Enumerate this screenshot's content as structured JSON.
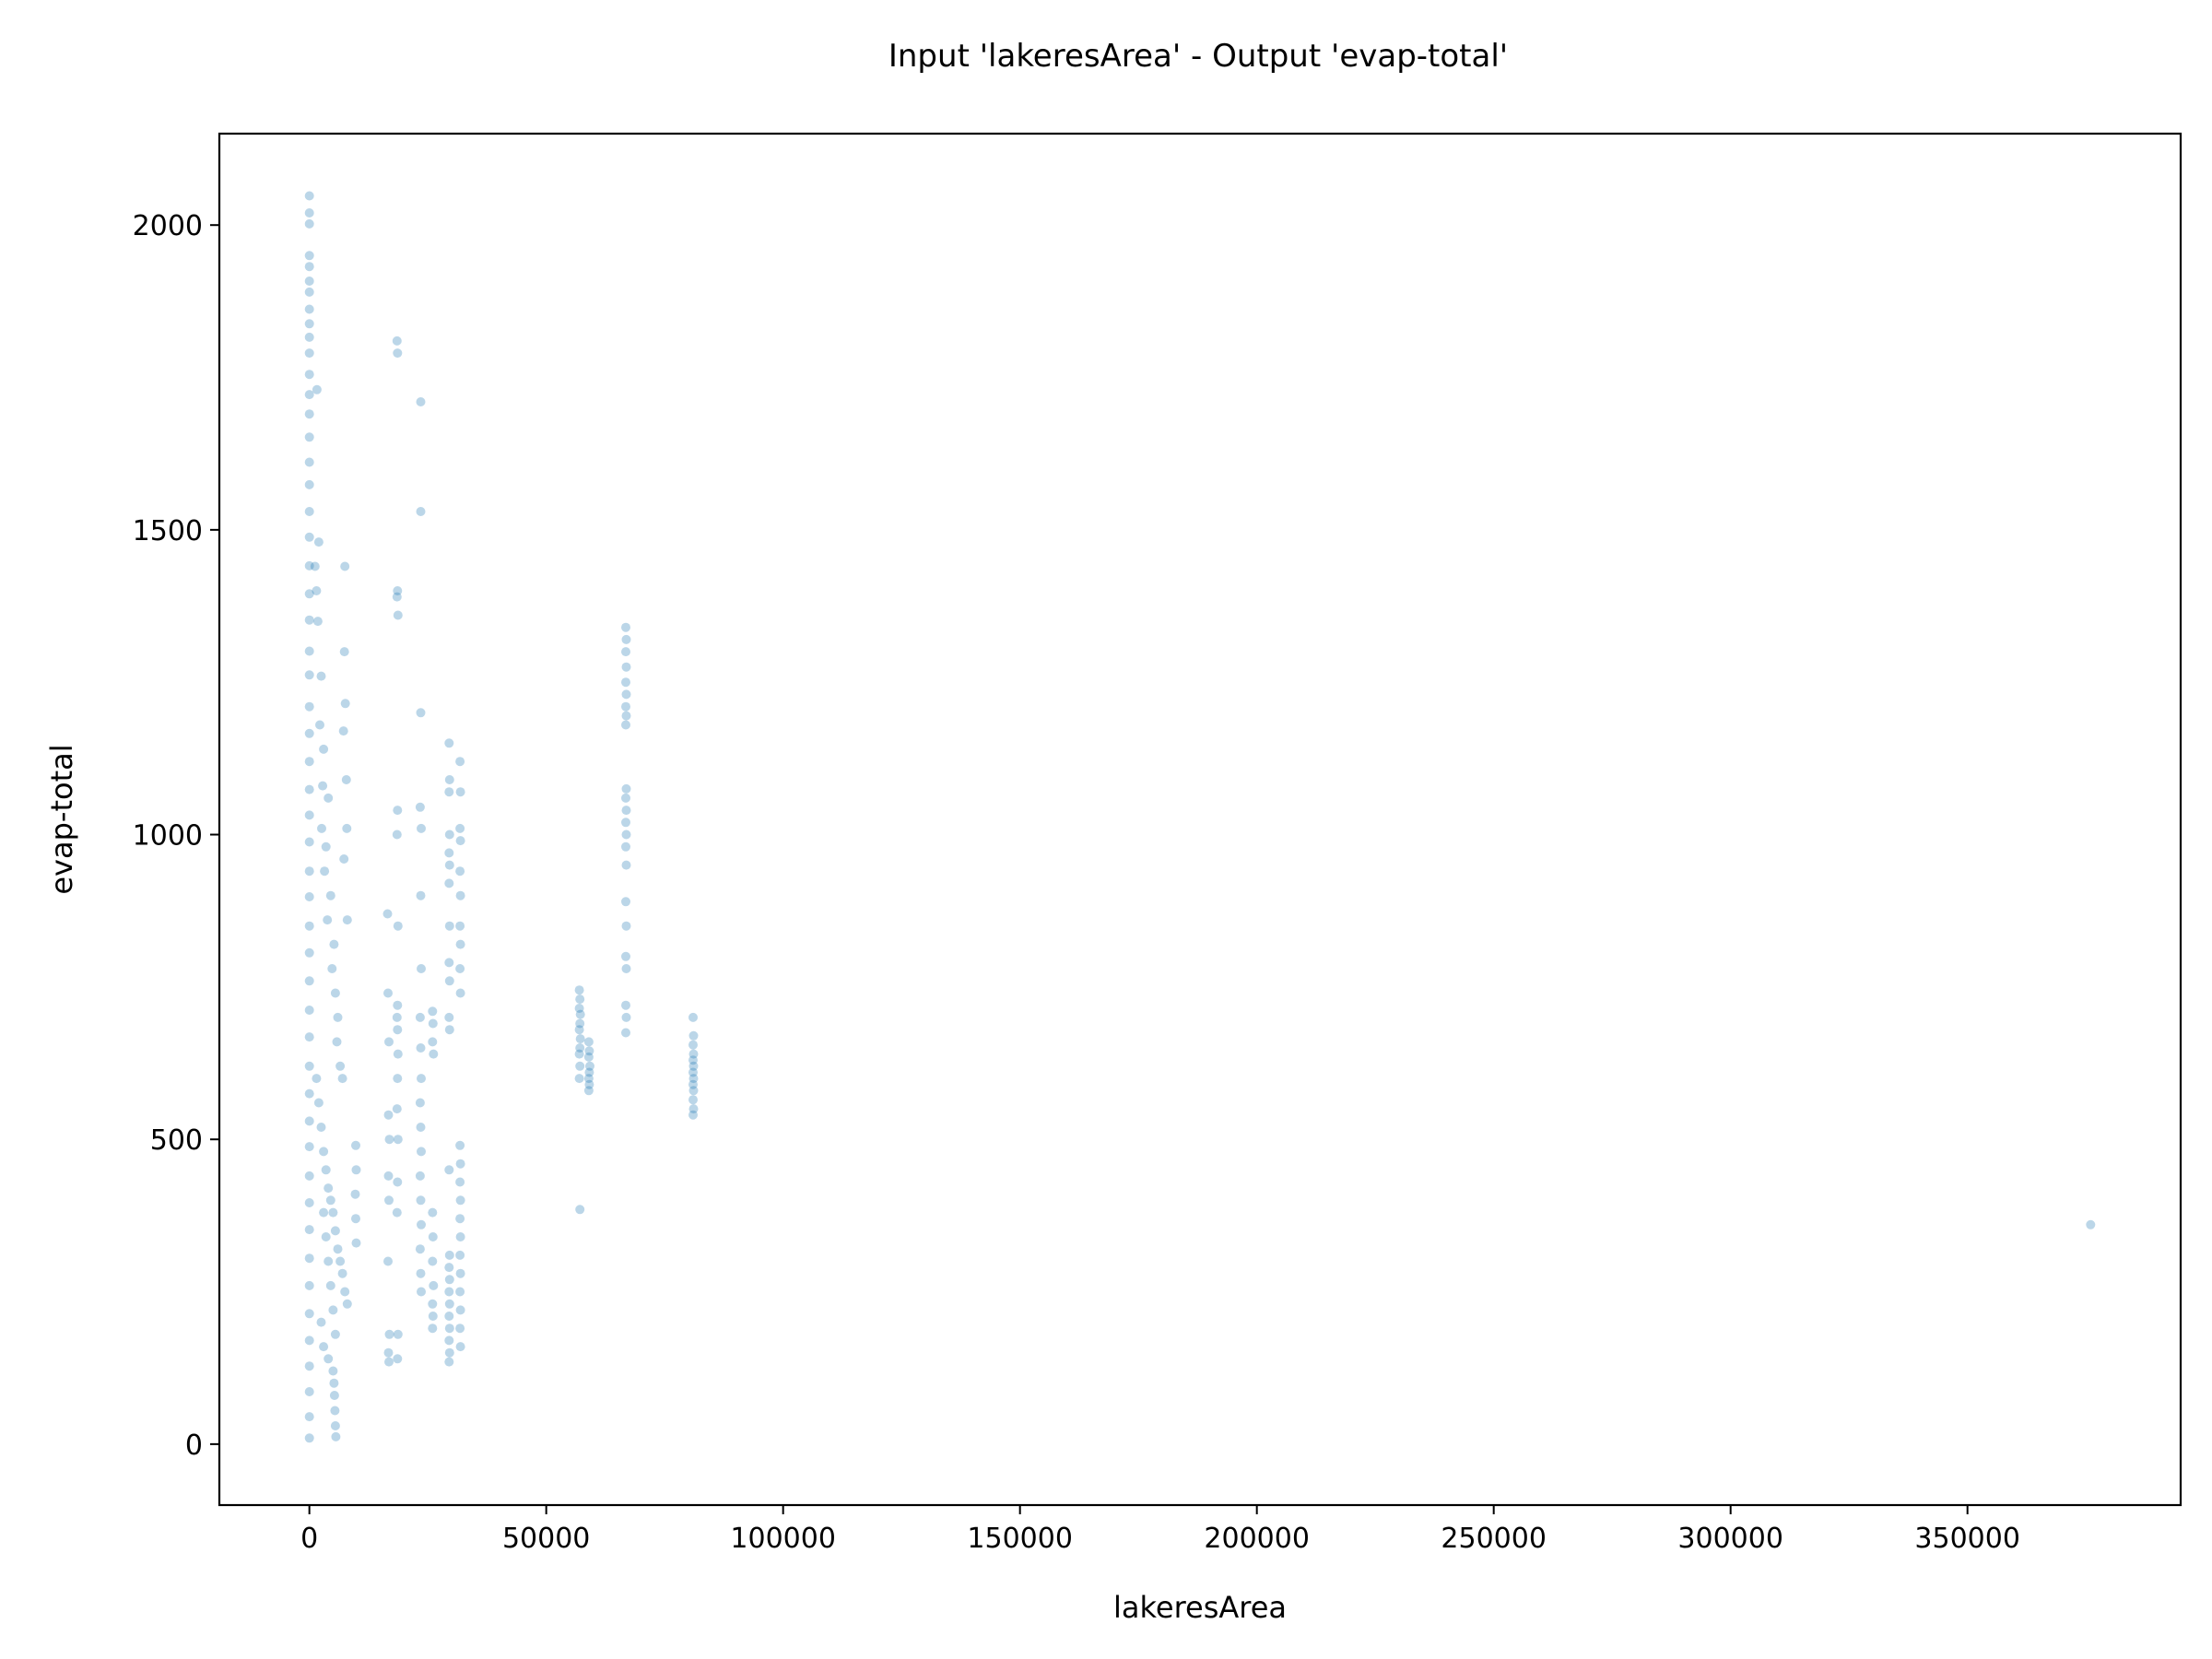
{
  "chart_data": {
    "type": "scatter",
    "title": "Input 'lakeresArea' - Output 'evap-total'",
    "xlabel": "lakeresArea",
    "ylabel": "evap-total",
    "xlim": [
      -19000,
      395000
    ],
    "ylim": [
      -100,
      2150
    ],
    "xticks": [
      0,
      50000,
      100000,
      150000,
      200000,
      250000,
      300000,
      350000
    ],
    "yticks": [
      0,
      500,
      1000,
      1500,
      2000
    ],
    "grid": false,
    "legend": "none",
    "marker_color": "#1f77b4",
    "marker_alpha": 0.3,
    "series": [
      {
        "points": [
          [
            0,
            2048
          ],
          [
            0,
            2020
          ],
          [
            0,
            2002
          ],
          [
            0,
            1950
          ],
          [
            0,
            1932
          ],
          [
            0,
            1908
          ],
          [
            0,
            1890
          ],
          [
            0,
            1862
          ],
          [
            0,
            1838
          ],
          [
            0,
            1816
          ],
          [
            0,
            1790
          ],
          [
            0,
            1755
          ],
          [
            0,
            1722
          ],
          [
            0,
            1690
          ],
          [
            0,
            1652
          ],
          [
            0,
            1611
          ],
          [
            0,
            1574
          ],
          [
            0,
            1530
          ],
          [
            0,
            1488
          ],
          [
            0,
            1441
          ],
          [
            0,
            1395
          ],
          [
            0,
            1352
          ],
          [
            0,
            1301
          ],
          [
            0,
            1262
          ],
          [
            0,
            1210
          ],
          [
            0,
            1166
          ],
          [
            0,
            1120
          ],
          [
            0,
            1074
          ],
          [
            0,
            1032
          ],
          [
            0,
            988
          ],
          [
            0,
            940
          ],
          [
            0,
            898
          ],
          [
            0,
            850
          ],
          [
            0,
            806
          ],
          [
            0,
            760
          ],
          [
            0,
            712
          ],
          [
            0,
            668
          ],
          [
            0,
            620
          ],
          [
            0,
            575
          ],
          [
            0,
            530
          ],
          [
            0,
            488
          ],
          [
            0,
            440
          ],
          [
            0,
            396
          ],
          [
            0,
            352
          ],
          [
            0,
            305
          ],
          [
            0,
            260
          ],
          [
            0,
            214
          ],
          [
            0,
            170
          ],
          [
            0,
            128
          ],
          [
            0,
            86
          ],
          [
            0,
            45
          ],
          [
            0,
            10
          ],
          [
            1200,
            1440
          ],
          [
            1500,
            1400
          ],
          [
            1800,
            1350
          ],
          [
            1600,
            1730
          ],
          [
            2000,
            1480
          ],
          [
            2500,
            1260
          ],
          [
            2200,
            1180
          ],
          [
            3000,
            1140
          ],
          [
            2800,
            1080
          ],
          [
            2600,
            1010
          ],
          [
            3500,
            980
          ],
          [
            3200,
            940
          ],
          [
            4000,
            1060
          ],
          [
            4500,
            900
          ],
          [
            3800,
            860
          ],
          [
            5200,
            820
          ],
          [
            4800,
            780
          ],
          [
            5500,
            740
          ],
          [
            6000,
            700
          ],
          [
            5800,
            660
          ],
          [
            6500,
            620
          ],
          [
            7000,
            600
          ],
          [
            7500,
            1440
          ],
          [
            7400,
            1300
          ],
          [
            7600,
            1215
          ],
          [
            7200,
            1170
          ],
          [
            7800,
            1090
          ],
          [
            7900,
            1010
          ],
          [
            7300,
            960
          ],
          [
            8000,
            860
          ],
          [
            1500,
            600
          ],
          [
            2000,
            560
          ],
          [
            2500,
            520
          ],
          [
            3000,
            480
          ],
          [
            3500,
            450
          ],
          [
            4000,
            420
          ],
          [
            4500,
            400
          ],
          [
            5000,
            380
          ],
          [
            5500,
            350
          ],
          [
            6000,
            320
          ],
          [
            6500,
            300
          ],
          [
            7000,
            280
          ],
          [
            7500,
            250
          ],
          [
            8000,
            230
          ],
          [
            3000,
            380
          ],
          [
            3500,
            340
          ],
          [
            4000,
            300
          ],
          [
            4500,
            260
          ],
          [
            5000,
            220
          ],
          [
            5500,
            180
          ],
          [
            2500,
            200
          ],
          [
            3000,
            160
          ],
          [
            4000,
            140
          ],
          [
            5000,
            120
          ],
          [
            5200,
            100
          ],
          [
            5300,
            80
          ],
          [
            5400,
            55
          ],
          [
            5500,
            30
          ],
          [
            5600,
            12
          ],
          [
            9800,
            490
          ],
          [
            9900,
            450
          ],
          [
            9700,
            410
          ],
          [
            9800,
            370
          ],
          [
            9900,
            330
          ],
          [
            16500,
            870
          ],
          [
            16600,
            740
          ],
          [
            16800,
            660
          ],
          [
            16700,
            540
          ],
          [
            16900,
            500
          ],
          [
            16700,
            440
          ],
          [
            16800,
            400
          ],
          [
            16600,
            300
          ],
          [
            16900,
            180
          ],
          [
            16700,
            150
          ],
          [
            16800,
            135
          ],
          [
            18500,
            1810
          ],
          [
            18600,
            1790
          ],
          [
            18600,
            1400
          ],
          [
            18500,
            1390
          ],
          [
            18700,
            1360
          ],
          [
            18600,
            1040
          ],
          [
            18500,
            1000
          ],
          [
            18700,
            850
          ],
          [
            18600,
            720
          ],
          [
            18500,
            700
          ],
          [
            18600,
            680
          ],
          [
            18700,
            640
          ],
          [
            18600,
            600
          ],
          [
            18500,
            550
          ],
          [
            18700,
            500
          ],
          [
            18600,
            430
          ],
          [
            18500,
            380
          ],
          [
            18700,
            180
          ],
          [
            18600,
            140
          ],
          [
            23500,
            1710
          ],
          [
            23500,
            1530
          ],
          [
            23500,
            1200
          ],
          [
            23400,
            1045
          ],
          [
            23600,
            1010
          ],
          [
            23500,
            900
          ],
          [
            23600,
            780
          ],
          [
            23400,
            700
          ],
          [
            23500,
            650
          ],
          [
            23600,
            600
          ],
          [
            23400,
            560
          ],
          [
            23500,
            520
          ],
          [
            23600,
            480
          ],
          [
            23400,
            440
          ],
          [
            23500,
            400
          ],
          [
            23600,
            360
          ],
          [
            23400,
            320
          ],
          [
            23500,
            280
          ],
          [
            23600,
            250
          ],
          [
            26000,
            710
          ],
          [
            26100,
            690
          ],
          [
            26000,
            660
          ],
          [
            26200,
            640
          ],
          [
            26000,
            380
          ],
          [
            26100,
            340
          ],
          [
            26000,
            300
          ],
          [
            26200,
            260
          ],
          [
            26000,
            230
          ],
          [
            26100,
            210
          ],
          [
            26000,
            190
          ],
          [
            29500,
            1150
          ],
          [
            29600,
            1090
          ],
          [
            29500,
            1070
          ],
          [
            29600,
            1000
          ],
          [
            29500,
            970
          ],
          [
            29600,
            950
          ],
          [
            29500,
            920
          ],
          [
            29600,
            850
          ],
          [
            29500,
            790
          ],
          [
            29600,
            760
          ],
          [
            29500,
            700
          ],
          [
            29600,
            680
          ],
          [
            29500,
            450
          ],
          [
            29600,
            310
          ],
          [
            29500,
            290
          ],
          [
            29600,
            270
          ],
          [
            29500,
            250
          ],
          [
            29600,
            230
          ],
          [
            29500,
            210
          ],
          [
            29600,
            190
          ],
          [
            29500,
            170
          ],
          [
            29600,
            150
          ],
          [
            29500,
            135
          ],
          [
            31800,
            1120
          ],
          [
            31900,
            1070
          ],
          [
            31800,
            1010
          ],
          [
            31900,
            990
          ],
          [
            31800,
            940
          ],
          [
            31900,
            900
          ],
          [
            31800,
            850
          ],
          [
            31900,
            820
          ],
          [
            31800,
            780
          ],
          [
            31900,
            740
          ],
          [
            31800,
            490
          ],
          [
            31900,
            460
          ],
          [
            31800,
            430
          ],
          [
            31900,
            400
          ],
          [
            31800,
            370
          ],
          [
            31900,
            340
          ],
          [
            31800,
            310
          ],
          [
            31900,
            280
          ],
          [
            31800,
            250
          ],
          [
            31900,
            220
          ],
          [
            31800,
            190
          ],
          [
            31900,
            160
          ],
          [
            57000,
            745
          ],
          [
            57100,
            730
          ],
          [
            57000,
            715
          ],
          [
            57200,
            705
          ],
          [
            57100,
            690
          ],
          [
            57000,
            680
          ],
          [
            57200,
            665
          ],
          [
            57100,
            650
          ],
          [
            57000,
            640
          ],
          [
            57100,
            620
          ],
          [
            57000,
            600
          ],
          [
            57100,
            385
          ],
          [
            59000,
            660
          ],
          [
            59100,
            645
          ],
          [
            59000,
            635
          ],
          [
            59200,
            620
          ],
          [
            59100,
            610
          ],
          [
            59000,
            600
          ],
          [
            59100,
            590
          ],
          [
            59000,
            580
          ],
          [
            66800,
            1340
          ],
          [
            66900,
            1320
          ],
          [
            66800,
            1300
          ],
          [
            66900,
            1275
          ],
          [
            66800,
            1250
          ],
          [
            66900,
            1230
          ],
          [
            66800,
            1210
          ],
          [
            66900,
            1195
          ],
          [
            66800,
            1180
          ],
          [
            66900,
            1075
          ],
          [
            66800,
            1060
          ],
          [
            66900,
            1040
          ],
          [
            66800,
            1020
          ],
          [
            66900,
            1000
          ],
          [
            66800,
            980
          ],
          [
            66900,
            950
          ],
          [
            66800,
            890
          ],
          [
            66900,
            850
          ],
          [
            66800,
            800
          ],
          [
            66900,
            780
          ],
          [
            66800,
            720
          ],
          [
            66900,
            700
          ],
          [
            66800,
            675
          ],
          [
            81000,
            700
          ],
          [
            81100,
            670
          ],
          [
            81000,
            655
          ],
          [
            81100,
            640
          ],
          [
            81000,
            630
          ],
          [
            81100,
            620
          ],
          [
            81000,
            610
          ],
          [
            81100,
            600
          ],
          [
            81000,
            590
          ],
          [
            81100,
            580
          ],
          [
            81000,
            565
          ],
          [
            81100,
            550
          ],
          [
            81000,
            540
          ],
          [
            376000,
            360
          ]
        ]
      }
    ]
  }
}
